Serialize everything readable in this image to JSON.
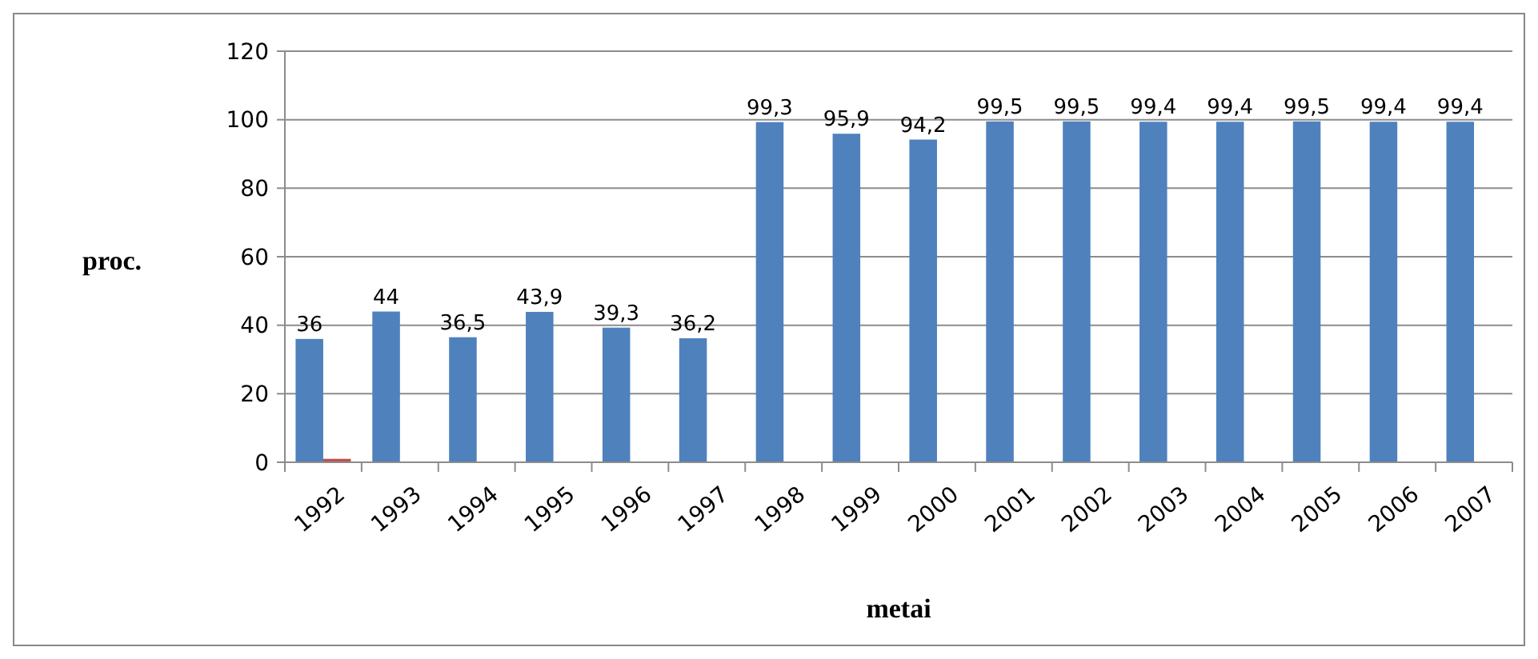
{
  "chart_data": {
    "type": "bar",
    "xlabel": "metai",
    "ylabel": "proc.",
    "categories": [
      "1992",
      "1993",
      "1994",
      "1995",
      "1996",
      "1997",
      "1998",
      "1999",
      "2000",
      "2001",
      "2002",
      "2003",
      "2004",
      "2005",
      "2006",
      "2007"
    ],
    "series": [
      {
        "color": "#4f81bd",
        "values": [
          36,
          44,
          36.5,
          43.9,
          39.3,
          36.2,
          99.3,
          95.9,
          94.2,
          99.5,
          99.5,
          99.4,
          99.4,
          99.5,
          99.4,
          99.4
        ],
        "value_labels": [
          "36",
          "44",
          "36,5",
          "43,9",
          "39,3",
          "36,2",
          "99,3",
          "95,9",
          "94,2",
          "99,5",
          "99,5",
          "99,4",
          "99,4",
          "99,5",
          "99,4",
          "99,4"
        ]
      },
      {
        "color": "#c0504d",
        "values": [
          1,
          null,
          null,
          null,
          null,
          null,
          null,
          null,
          null,
          null,
          null,
          null,
          null,
          null,
          null,
          null
        ]
      }
    ],
    "ylim": [
      0,
      120
    ],
    "yticks": [
      0,
      20,
      40,
      60,
      80,
      100,
      120
    ],
    "grid": "y"
  }
}
